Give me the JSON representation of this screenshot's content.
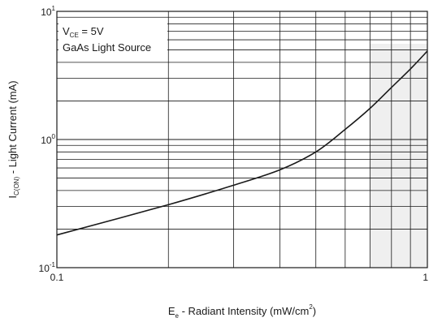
{
  "chart_data": {
    "type": "line",
    "xlabel": {
      "main": "E",
      "sub": "e",
      "rest": " - Radiant Intensity (mW/cm",
      "sup": "2",
      "end": ")"
    },
    "ylabel": {
      "main": "I",
      "sub": "C(ON)",
      "rest": "  - Light Current (mA)"
    },
    "x_scale": "log",
    "y_scale": "log",
    "xlim": [
      0.1,
      1
    ],
    "ylim": [
      0.1,
      10
    ],
    "x_tick_labels": [
      "0.1",
      "1"
    ],
    "y_tick_labels": [
      {
        "base": "10",
        "exp": "-1"
      },
      {
        "base": "10",
        "exp": "0"
      },
      {
        "base": "10",
        "exp": "1"
      }
    ],
    "grid": true,
    "annotation": {
      "line1": {
        "main": "V",
        "sub": "CE",
        "rest": " = 5V"
      },
      "line2": "GaAs Light Source"
    },
    "series": [
      {
        "x": [
          0.1,
          0.2,
          0.3,
          0.4,
          0.5,
          0.6,
          0.7,
          0.8,
          0.9,
          1.0
        ],
        "y": [
          0.18,
          0.31,
          0.44,
          0.58,
          0.8,
          1.2,
          1.75,
          2.55,
          3.55,
          4.9
        ]
      }
    ],
    "colors": {
      "line": "#1a1a1a",
      "grid": "#1a1a1a",
      "shade": "#efefef"
    }
  }
}
